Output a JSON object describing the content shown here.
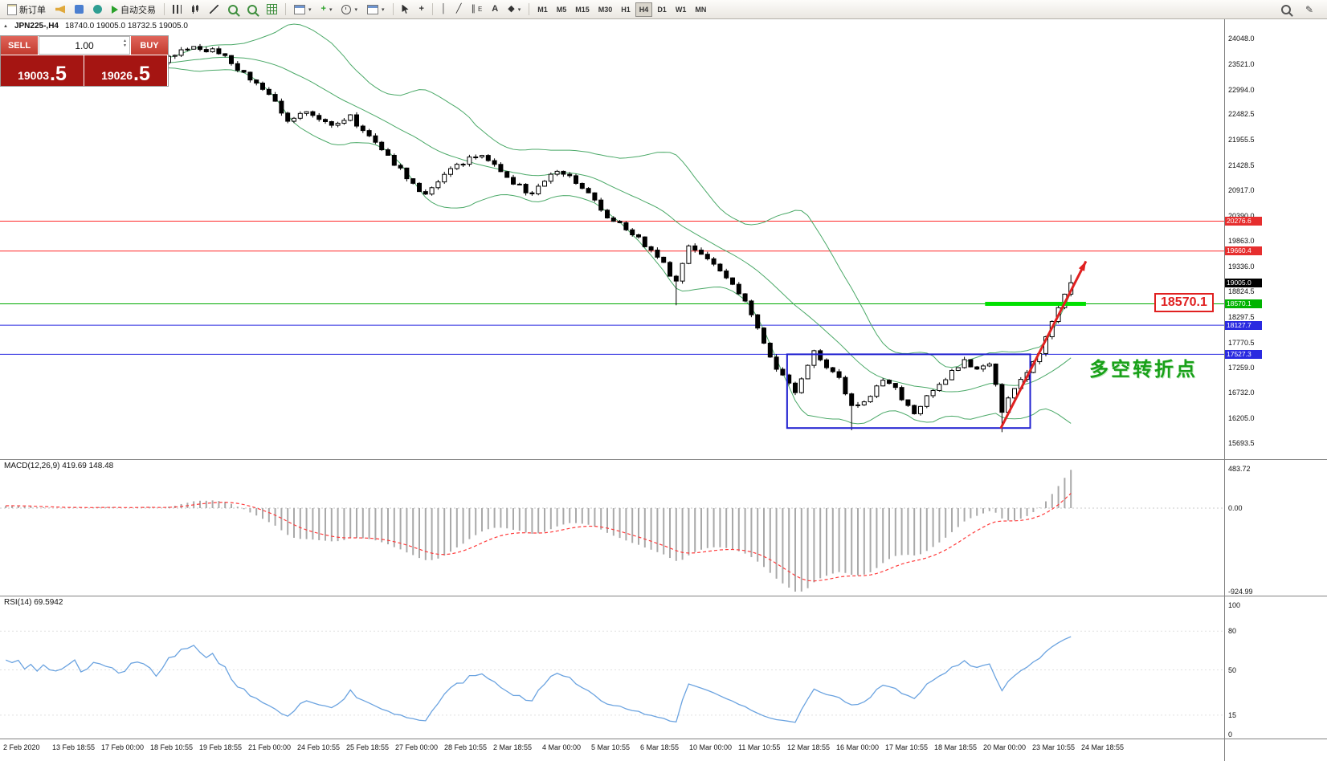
{
  "toolbar": {
    "new_order": "新订单",
    "auto_trading": "自动交易",
    "timeframes": [
      "M1",
      "M5",
      "M15",
      "M30",
      "H1",
      "H4",
      "D1",
      "W1",
      "MN"
    ],
    "active_timeframe": "H4"
  },
  "trade_panel": {
    "sell_label": "SELL",
    "buy_label": "BUY",
    "volume": "1.00",
    "sell_price_int": "19003",
    "sell_price_dec": ".5",
    "buy_price_int": "19026",
    "buy_price_dec": ".5"
  },
  "chart": {
    "symbol": "JPN225-,H4",
    "ohlc": "18740.0 19005.0 18732.5 19005.0"
  },
  "indicators": {
    "macd_header": "MACD(12,26,9) 419.69 148.48",
    "macd_scale": [
      "483.72",
      "0.00",
      "-924.99"
    ],
    "rsi_header": "RSI(14) 69.5942",
    "rsi_scale": [
      "100",
      "80",
      "50",
      "15",
      "0"
    ]
  },
  "annotations": {
    "turning_point": "多空转折点",
    "price_callout": "18570.1"
  },
  "price_scale": [
    "24048.0",
    "23521.0",
    "22994.0",
    "22482.5",
    "21955.5",
    "21428.5",
    "20917.0",
    "20390.0",
    "19863.0",
    "19336.0",
    "18824.5",
    "18297.5",
    "17770.5",
    "17259.0",
    "16732.0",
    "16205.0",
    "15693.5"
  ],
  "price_tags": [
    {
      "value": "20276.6",
      "price": 20276.6,
      "bg": "#e62e2e"
    },
    {
      "value": "19660.4",
      "price": 19660.4,
      "bg": "#e62e2e"
    },
    {
      "value": "19005.0",
      "price": 19005.0,
      "bg": "#000000"
    },
    {
      "value": "18570.1",
      "price": 18570.1,
      "bg": "#00b300"
    },
    {
      "value": "18127.7",
      "price": 18127.7,
      "bg": "#2a2ae0"
    },
    {
      "value": "17527.3",
      "price": 17527.3,
      "bg": "#2a2ae0"
    }
  ],
  "time_axis": [
    "2 Feb 2020",
    "13 Feb 18:55",
    "17 Feb 00:00",
    "18 Feb 10:55",
    "19 Feb 18:55",
    "21 Feb 00:00",
    "24 Feb 10:55",
    "25 Feb 18:55",
    "27 Feb 00:00",
    "28 Feb 10:55",
    "2 Mar 18:55",
    "4 Mar 00:00",
    "5 Mar 10:55",
    "6 Mar 18:55",
    "10 Mar 00:00",
    "11 Mar 10:55",
    "12 Mar 18:55",
    "16 Mar 00:00",
    "17 Mar 10:55",
    "18 Mar 18:55",
    "20 Mar 00:00",
    "23 Mar 10:55",
    "24 Mar 18:55"
  ],
  "chart_data": {
    "type": "candlestick",
    "symbol": "JPN225-",
    "timeframe": "H4",
    "title": "JPN225-,H4 18740.0 19005.0 18732.5 19005.0",
    "y_axis_range": [
      15693.5,
      24048.0
    ],
    "y_axis_ticks": [
      24048.0,
      23521.0,
      22994.0,
      22482.5,
      21955.5,
      21428.5,
      20917.0,
      20390.0,
      19863.0,
      19336.0,
      18824.5,
      18297.5,
      17770.5,
      17259.0,
      16732.0,
      16205.0,
      15693.5
    ],
    "last_close": 19005.0,
    "price_waypoints": [
      [
        0,
        23700
      ],
      [
        4,
        23860
      ],
      [
        8,
        23780
      ],
      [
        12,
        23320
      ],
      [
        16,
        22900
      ],
      [
        19,
        22340
      ],
      [
        22,
        22520
      ],
      [
        26,
        22300
      ],
      [
        29,
        22430
      ],
      [
        33,
        21880
      ],
      [
        36,
        21480
      ],
      [
        39,
        21050
      ],
      [
        41,
        20800
      ],
      [
        44,
        21220
      ],
      [
        47,
        21500
      ],
      [
        50,
        21680
      ],
      [
        52,
        21400
      ],
      [
        55,
        21080
      ],
      [
        58,
        20820
      ],
      [
        62,
        21340
      ],
      [
        64,
        21200
      ],
      [
        67,
        20860
      ],
      [
        70,
        20380
      ],
      [
        73,
        20150
      ],
      [
        76,
        19800
      ],
      [
        79,
        19380
      ],
      [
        81,
        19000
      ],
      [
        83,
        19760
      ],
      [
        86,
        19500
      ],
      [
        89,
        19150
      ],
      [
        92,
        18620
      ],
      [
        94,
        18080
      ],
      [
        97,
        17200
      ],
      [
        100,
        16760
      ],
      [
        103,
        17560
      ],
      [
        105,
        17300
      ],
      [
        107,
        17040
      ],
      [
        109,
        16450
      ],
      [
        112,
        16660
      ],
      [
        114,
        17040
      ],
      [
        116,
        16800
      ],
      [
        119,
        16300
      ],
      [
        122,
        16800
      ],
      [
        125,
        17180
      ],
      [
        127,
        17400
      ],
      [
        129,
        17180
      ],
      [
        131,
        17360
      ],
      [
        133,
        16350
      ],
      [
        135,
        16820
      ],
      [
        137,
        17120
      ],
      [
        139,
        17560
      ],
      [
        141,
        18220
      ],
      [
        143,
        18760
      ],
      [
        144,
        19005
      ]
    ],
    "spike_lows": [
      [
        81,
        18540
      ],
      [
        109,
        15960
      ],
      [
        133,
        15920
      ]
    ],
    "horizontal_lines": [
      {
        "price": 20276.6,
        "color": "#ff2a2a",
        "style": "solid"
      },
      {
        "price": 19660.4,
        "color": "#ff2a2a",
        "style": "solid"
      },
      {
        "price": 18570.1,
        "color": "#00aa00",
        "style": "solid"
      },
      {
        "price": 18127.7,
        "color": "#2a2ae0",
        "style": "solid"
      },
      {
        "price": 17527.3,
        "color": "#2a2ae0",
        "style": "solid"
      }
    ],
    "highlight_segment": {
      "price": 18570.1,
      "from_index": 130.3,
      "to_index": 146.4,
      "color": "#00e000"
    },
    "rectangle": {
      "from_index": 98.7,
      "to_index": 137.5,
      "price_top": 17527.3,
      "price_bottom": 16005,
      "color": "#1f1fd0"
    },
    "arrow": {
      "x1_index": 132.8,
      "price1": 16000,
      "x2_index": 146.4,
      "price2": 19450,
      "color": "#e02020"
    },
    "bollinger": {
      "period": 20,
      "deviation": 2,
      "color": "#4ba968"
    },
    "candle_colors": {
      "up": "#ffffff",
      "down": "#000000",
      "border": "#000000"
    },
    "macd": {
      "fast": 12,
      "slow": 26,
      "signal": 9,
      "last_values": [
        419.69,
        148.48
      ],
      "scale_max": 483.72,
      "scale_min": -924.99,
      "histogram_color": "#a9a9a9",
      "signal_color": "#ff3b3b"
    },
    "rsi": {
      "period": 14,
      "last_value": 69.5942,
      "color": "#6ba3e0"
    }
  }
}
